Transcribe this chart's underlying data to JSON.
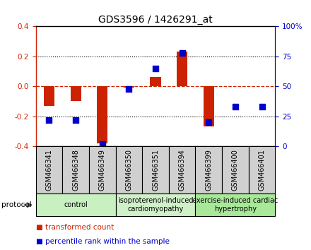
{
  "title": "GDS3596 / 1426291_at",
  "samples": [
    "GSM466341",
    "GSM466348",
    "GSM466349",
    "GSM466350",
    "GSM466351",
    "GSM466394",
    "GSM466399",
    "GSM466400",
    "GSM466401"
  ],
  "transformed_count": [
    -0.13,
    -0.1,
    -0.38,
    -0.01,
    0.06,
    0.23,
    -0.27,
    0.0,
    0.0
  ],
  "percentile_rank": [
    22,
    22,
    2,
    48,
    65,
    78,
    20,
    33,
    33
  ],
  "groups": [
    {
      "label": "control",
      "start": 0,
      "end": 3,
      "color": "#c8f0c0"
    },
    {
      "label": "isoproterenol-induced\ncardiomyopathy",
      "start": 3,
      "end": 6,
      "color": "#d0f0c8"
    },
    {
      "label": "exercise-induced cardiac\nhypertrophy",
      "start": 6,
      "end": 9,
      "color": "#a8e898"
    }
  ],
  "protocol_label": "protocol",
  "bar_color": "#cc2200",
  "dot_color": "#0000cc",
  "ylim_left": [
    -0.4,
    0.4
  ],
  "ylim_right": [
    0,
    100
  ],
  "yticks_left": [
    -0.4,
    -0.2,
    0.0,
    0.2,
    0.4
  ],
  "yticks_right": [
    0,
    25,
    50,
    75,
    100
  ],
  "ytick_labels_right": [
    "0",
    "25",
    "50",
    "75",
    "100%"
  ],
  "dotted_hlines": [
    -0.2,
    0.2
  ],
  "legend_items": [
    {
      "label": "transformed count",
      "color": "#cc2200"
    },
    {
      "label": "percentile rank within the sample",
      "color": "#0000cc"
    }
  ],
  "bar_width": 0.4,
  "dot_size": 40,
  "box_color": "#d0d0d0",
  "title_fontsize": 10,
  "tick_fontsize": 7.5,
  "label_fontsize": 7,
  "legend_fontsize": 7.5
}
